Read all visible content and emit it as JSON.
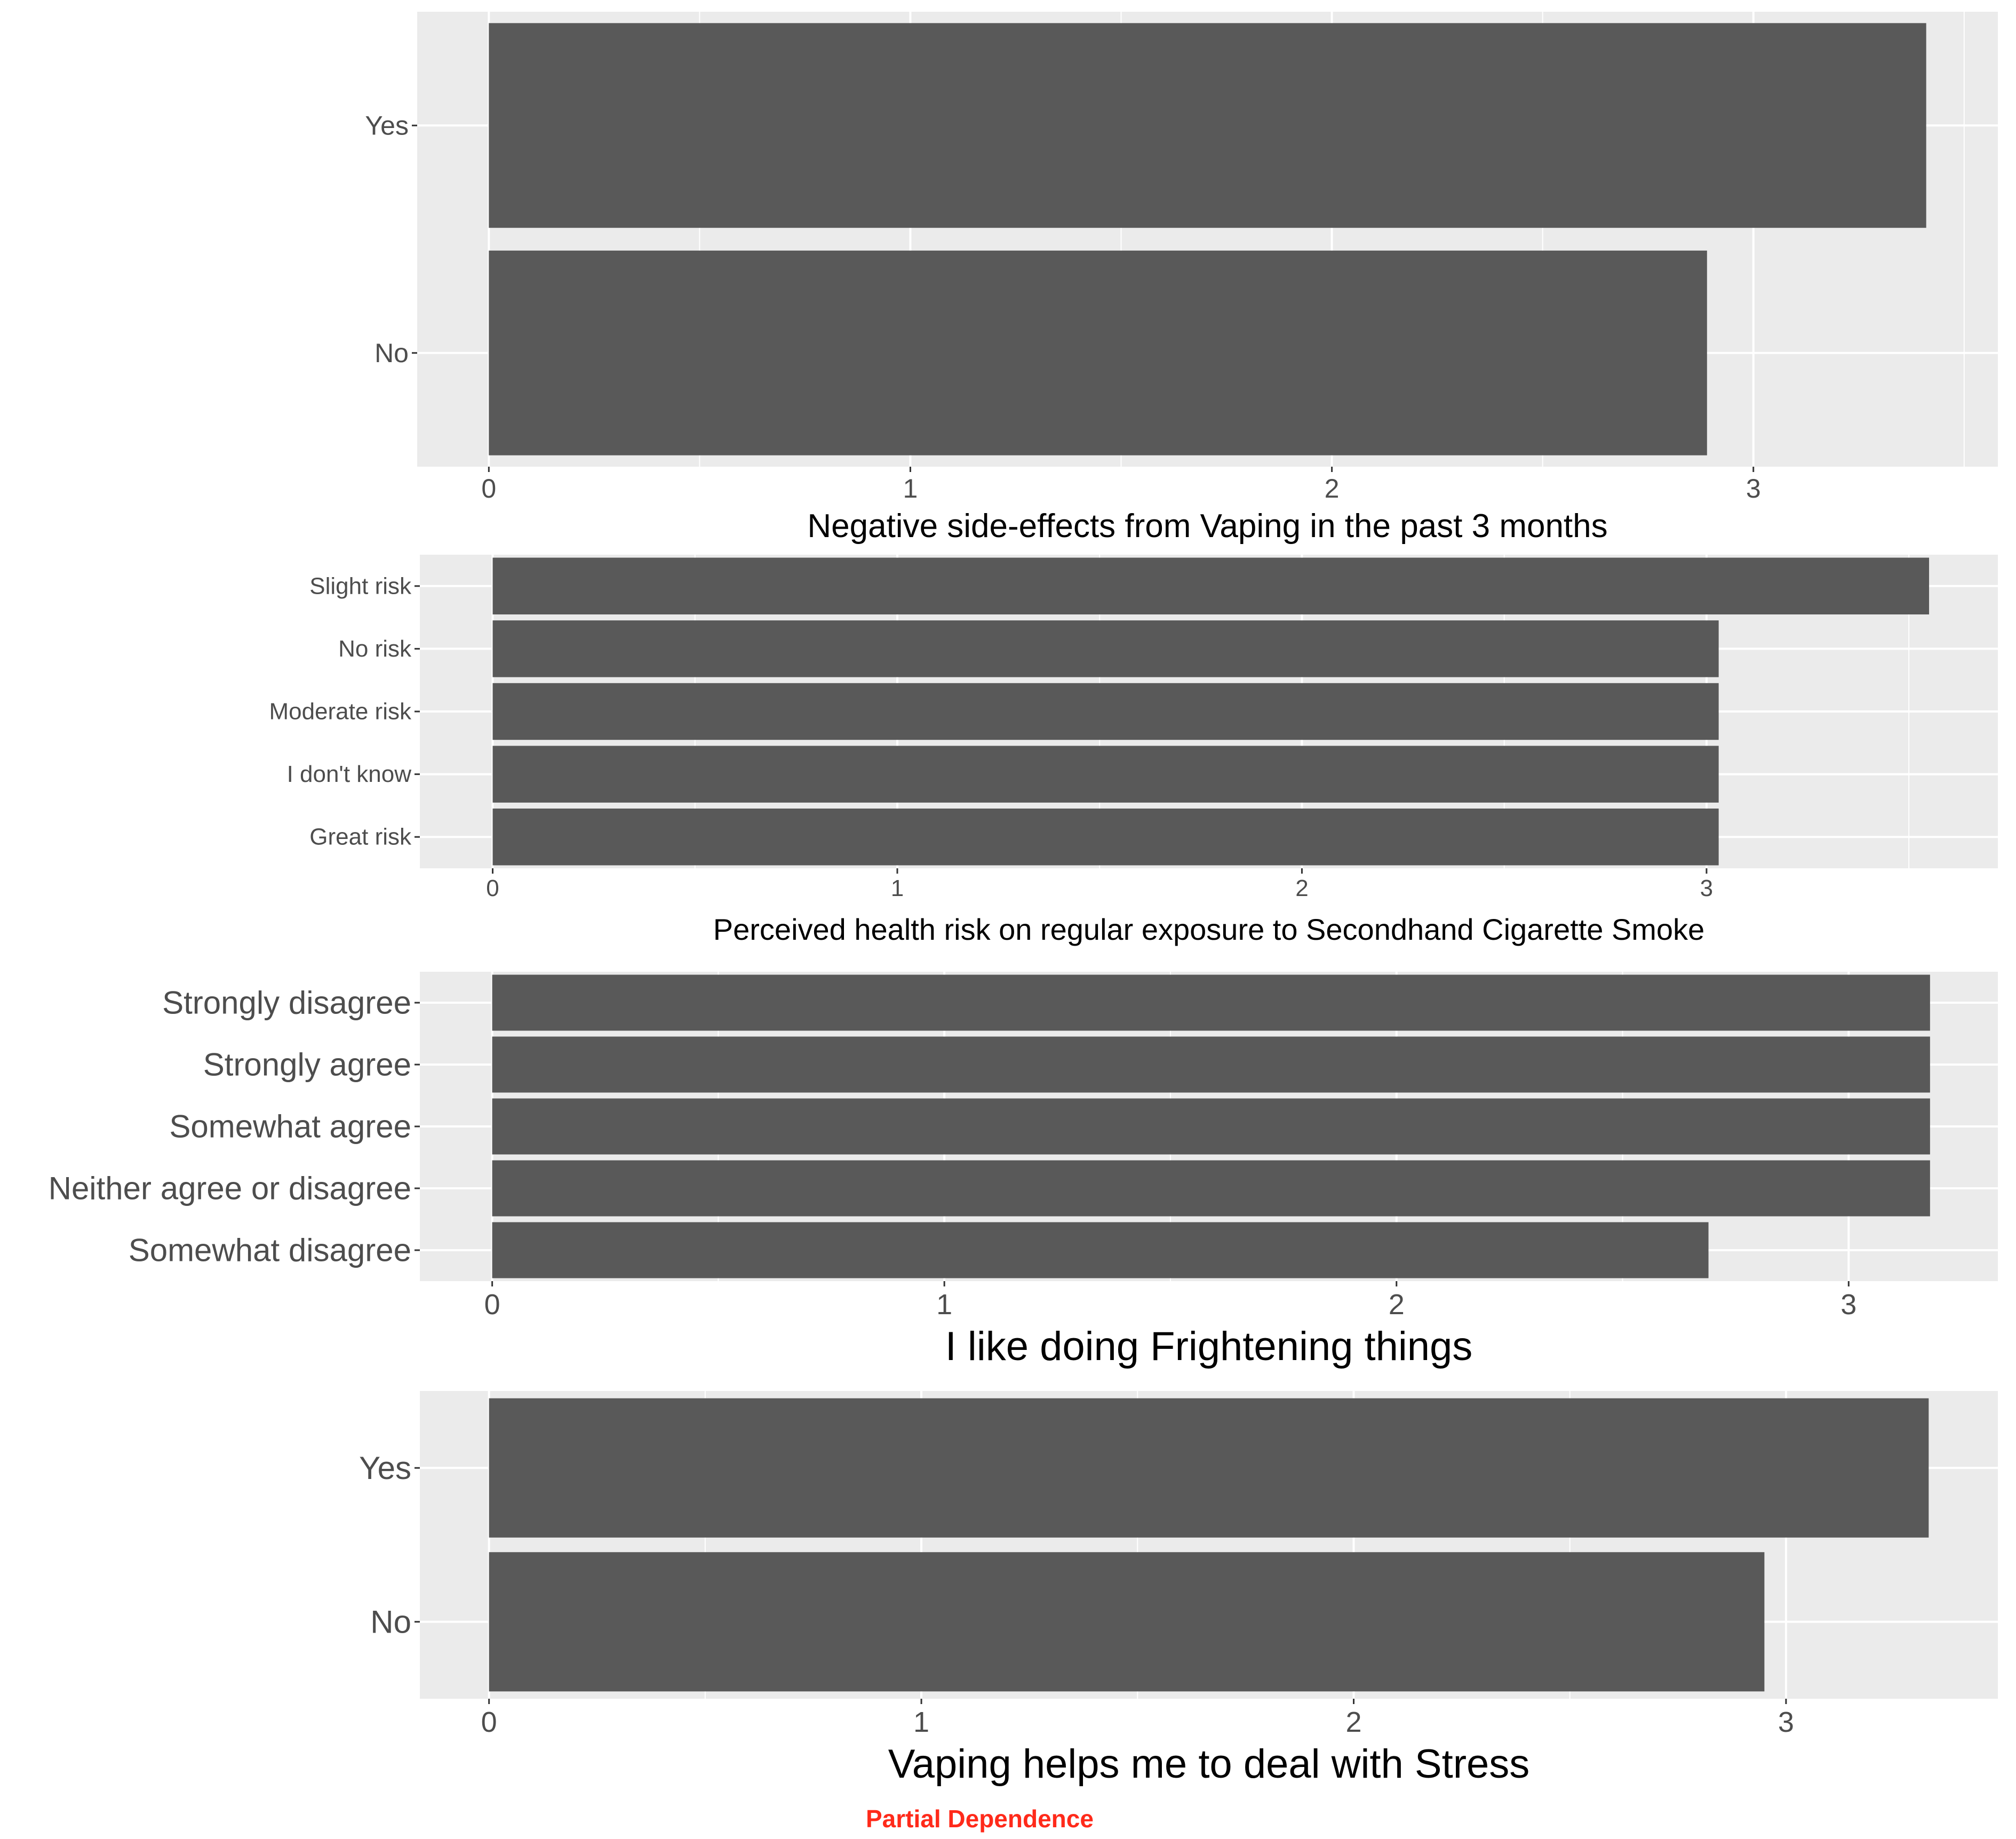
{
  "chart_data": [
    {
      "type": "bar",
      "orientation": "horizontal",
      "categories": [
        "Yes",
        "No"
      ],
      "values": [
        3.41,
        2.89
      ],
      "xlabel": "Negative side-effects from Vaping in the past 3 months",
      "xticks": [
        "0",
        "1",
        "2",
        "3"
      ],
      "xlim": [
        -0.17,
        3.58
      ],
      "grid": true,
      "bar_color": "#595959"
    },
    {
      "type": "bar",
      "orientation": "horizontal",
      "categories": [
        "Slight risk",
        "No risk",
        "Moderate risk",
        "I don't know",
        "Great risk"
      ],
      "values": [
        3.55,
        3.03,
        3.03,
        3.03,
        3.03
      ],
      "xlabel": "Perceived health risk on regular exposure to Secondhand Cigarette Smoke",
      "xticks": [
        "0",
        "1",
        "2",
        "3"
      ],
      "xlim": [
        -0.18,
        3.72
      ],
      "grid": true,
      "bar_color": "#595959"
    },
    {
      "type": "bar",
      "orientation": "horizontal",
      "categories": [
        "Strongly disagree",
        "Strongly agree",
        "Somewhat agree",
        "Neither agree or disagree",
        "Somewhat disagree"
      ],
      "values": [
        3.18,
        3.18,
        3.18,
        3.18,
        2.69
      ],
      "xlabel": "I like doing Frightening things",
      "xticks": [
        "0",
        "1",
        "2",
        "3"
      ],
      "xlim": [
        -0.16,
        3.33
      ],
      "grid": true,
      "bar_color": "#595959"
    },
    {
      "type": "bar",
      "orientation": "horizontal",
      "categories": [
        "Yes",
        "No"
      ],
      "values": [
        3.33,
        2.95
      ],
      "xlabel": "Vaping helps me to deal with Stress",
      "xticks": [
        "0",
        "1",
        "2",
        "3"
      ],
      "xlim": [
        -0.16,
        3.49
      ],
      "grid": true,
      "bar_color": "#595959"
    }
  ],
  "footer": {
    "label": "Partial Dependence",
    "color": "#ff2a1a"
  },
  "colors": {
    "panel_background": "#ebebeb",
    "grid_major": "#ffffff",
    "bar": "#595959",
    "tick_text": "#4d4d4d",
    "axis_title": "#000000"
  }
}
